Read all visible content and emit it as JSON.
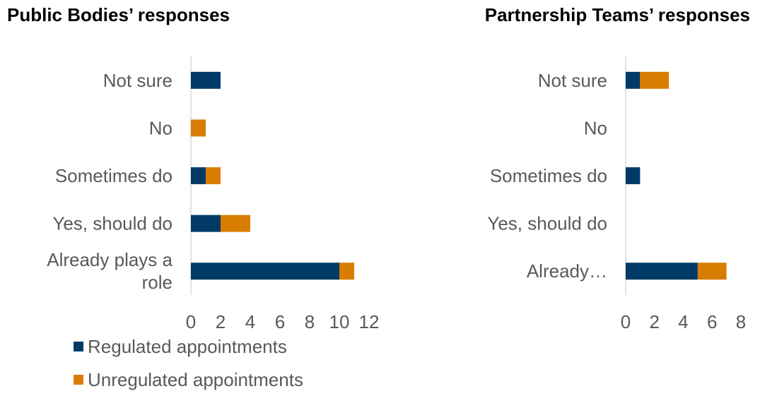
{
  "chart_data": [
    {
      "type": "bar",
      "orientation": "horizontal",
      "stacked": true,
      "title": "Public Bodies’ responses",
      "categories": [
        "Not sure",
        "No",
        "Sometimes do",
        "Yes, should do",
        "Already plays a role"
      ],
      "category_lines": [
        [
          "Not sure"
        ],
        [
          "No"
        ],
        [
          "Sometimes do"
        ],
        [
          "Yes, should do"
        ],
        [
          "Already plays a",
          "role"
        ]
      ],
      "series": [
        {
          "name": "Regulated appointments",
          "values": [
            2,
            0,
            1,
            2,
            10
          ]
        },
        {
          "name": "Unregulated appointments",
          "values": [
            0,
            1,
            1,
            2,
            1
          ]
        }
      ],
      "xlim": [
        0,
        12
      ],
      "xticks": [
        "0",
        "2",
        "4",
        "6",
        "8",
        "10",
        "12"
      ],
      "grid": false
    },
    {
      "type": "bar",
      "orientation": "horizontal",
      "stacked": true,
      "title": "Partnership Teams’ responses",
      "categories": [
        "Not sure",
        "No",
        "Sometimes do",
        "Yes, should do",
        "Already…"
      ],
      "category_lines": [
        [
          "Not sure"
        ],
        [
          "No"
        ],
        [
          "Sometimes do"
        ],
        [
          "Yes, should do"
        ],
        [
          "Already…"
        ]
      ],
      "series": [
        {
          "name": "Regulated appointments",
          "values": [
            1,
            0,
            1,
            0,
            5
          ]
        },
        {
          "name": "Unregulated appointments",
          "values": [
            2,
            0,
            0,
            0,
            2
          ]
        }
      ],
      "xlim": [
        0,
        8
      ],
      "xticks": [
        "0",
        "2",
        "4",
        "6",
        "8"
      ],
      "grid": false
    }
  ],
  "legend": {
    "placement": "bottom-left",
    "items": [
      {
        "label": "Regulated appointments",
        "color": "#003a66"
      },
      {
        "label": "Unregulated appointments",
        "color": "#d97d00"
      }
    ]
  },
  "colors": {
    "regulated": "#003a66",
    "unregulated": "#d97d00",
    "axis": "#d9d9d9",
    "label": "#595959"
  }
}
